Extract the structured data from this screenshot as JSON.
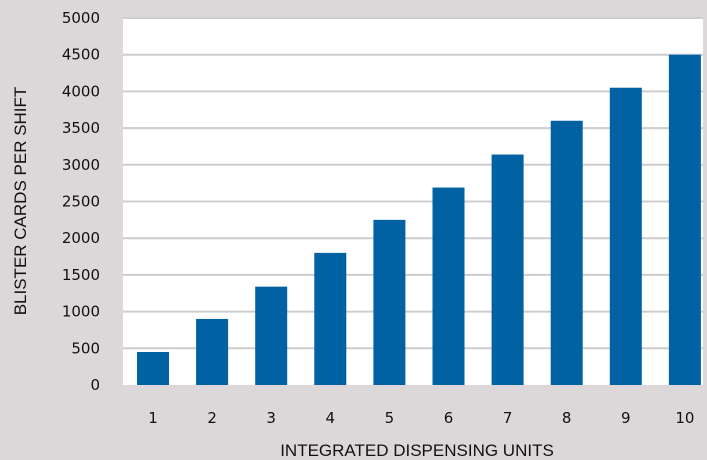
{
  "chart_data": {
    "type": "bar",
    "title": "",
    "xlabel": "INTEGRATED DISPENSING UNITS",
    "ylabel": "BLISTER CARDS PER SHIFT",
    "categories": [
      "1",
      "2",
      "3",
      "4",
      "5",
      "6",
      "7",
      "8",
      "9",
      "10"
    ],
    "values": [
      450,
      900,
      1340,
      1800,
      2250,
      2690,
      3140,
      3600,
      4050,
      4500
    ],
    "ylim": [
      0,
      5000
    ],
    "yticks": [
      "0",
      "500",
      "1000",
      "1500",
      "2000",
      "2500",
      "3000",
      "3500",
      "4000",
      "4500",
      "5000"
    ],
    "grid": true,
    "legend": "none",
    "colors": {
      "bar": "#0062a3",
      "plot_background": "#ffffff",
      "page_background": "#dcd7d8",
      "gridline": "#d0cccc"
    }
  }
}
